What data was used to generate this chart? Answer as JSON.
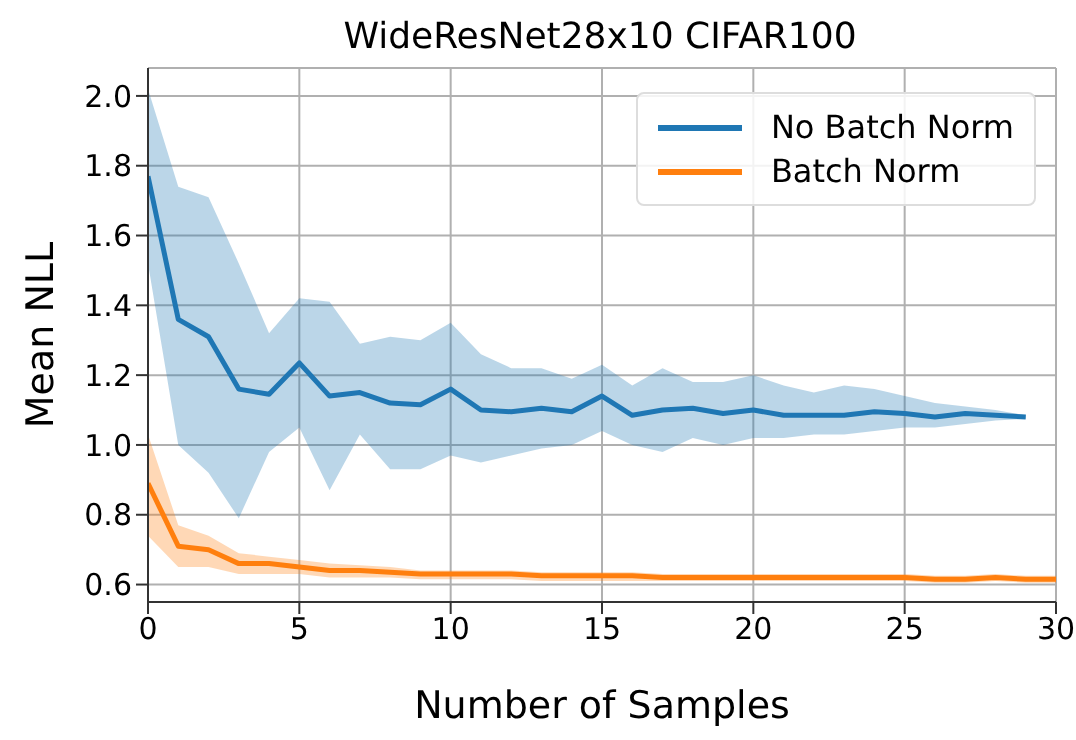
{
  "chart_data": {
    "type": "line",
    "title": "WideResNet28x10 CIFAR100",
    "xlabel": "Number of Samples",
    "ylabel": "Mean NLL",
    "x": [
      0,
      1,
      2,
      3,
      4,
      5,
      6,
      7,
      8,
      9,
      10,
      11,
      12,
      13,
      14,
      15,
      16,
      17,
      18,
      19,
      20,
      21,
      22,
      23,
      24,
      25,
      26,
      27,
      28,
      29,
      30
    ],
    "series": [
      {
        "name": "No Batch Norm",
        "color": "#1f77b4",
        "values": [
          1.77,
          1.36,
          1.31,
          1.16,
          1.145,
          1.235,
          1.14,
          1.15,
          1.12,
          1.115,
          1.16,
          1.1,
          1.095,
          1.105,
          1.095,
          1.14,
          1.085,
          1.1,
          1.105,
          1.09,
          1.1,
          1.085,
          1.085,
          1.085,
          1.095,
          1.09,
          1.08,
          1.09,
          1.085,
          1.08,
          null
        ],
        "lower": [
          1.52,
          1.0,
          0.92,
          0.79,
          0.98,
          1.05,
          0.87,
          1.03,
          0.93,
          0.93,
          0.97,
          0.95,
          0.97,
          0.99,
          1.0,
          1.04,
          1.0,
          0.98,
          1.02,
          1.0,
          1.02,
          1.02,
          1.03,
          1.03,
          1.04,
          1.05,
          1.05,
          1.06,
          1.07,
          1.075,
          null
        ],
        "upper": [
          2.02,
          1.74,
          1.71,
          1.52,
          1.32,
          1.42,
          1.41,
          1.29,
          1.31,
          1.3,
          1.35,
          1.26,
          1.22,
          1.22,
          1.19,
          1.23,
          1.17,
          1.22,
          1.18,
          1.18,
          1.2,
          1.17,
          1.15,
          1.17,
          1.16,
          1.14,
          1.12,
          1.11,
          1.1,
          1.085,
          null
        ]
      },
      {
        "name": "Batch Norm",
        "color": "#ff7f0e",
        "values": [
          0.89,
          0.71,
          0.7,
          0.66,
          0.66,
          0.65,
          0.64,
          0.64,
          0.635,
          0.63,
          0.63,
          0.63,
          0.63,
          0.625,
          0.625,
          0.625,
          0.625,
          0.62,
          0.62,
          0.62,
          0.62,
          0.62,
          0.62,
          0.62,
          0.62,
          0.62,
          0.615,
          0.615,
          0.62,
          0.615,
          0.615
        ],
        "lower": [
          0.74,
          0.65,
          0.65,
          0.63,
          0.63,
          0.63,
          0.62,
          0.62,
          0.62,
          0.615,
          0.615,
          0.615,
          0.615,
          0.61,
          0.61,
          0.61,
          0.61,
          0.61,
          0.61,
          0.61,
          0.61,
          0.61,
          0.61,
          0.61,
          0.61,
          0.61,
          0.605,
          0.605,
          0.61,
          0.605,
          0.605
        ],
        "upper": [
          1.03,
          0.77,
          0.74,
          0.69,
          0.68,
          0.67,
          0.66,
          0.655,
          0.65,
          0.64,
          0.64,
          0.64,
          0.64,
          0.635,
          0.635,
          0.635,
          0.635,
          0.63,
          0.63,
          0.63,
          0.63,
          0.63,
          0.63,
          0.63,
          0.63,
          0.63,
          0.625,
          0.625,
          0.63,
          0.625,
          0.625
        ]
      }
    ],
    "xlim": [
      0,
      30
    ],
    "xticks": [
      0,
      5,
      10,
      15,
      20,
      25,
      30
    ],
    "ylim": [
      0.55,
      2.08
    ],
    "yticks": [
      0.6,
      0.8,
      {
        "value": 1,
        "label": "1.0"
      },
      1.2,
      1.4,
      1.6,
      1.8,
      {
        "value": 2,
        "label": "2.0"
      }
    ],
    "grid": true,
    "legend": "top right",
    "marker": "none",
    "line_style": "solid"
  }
}
